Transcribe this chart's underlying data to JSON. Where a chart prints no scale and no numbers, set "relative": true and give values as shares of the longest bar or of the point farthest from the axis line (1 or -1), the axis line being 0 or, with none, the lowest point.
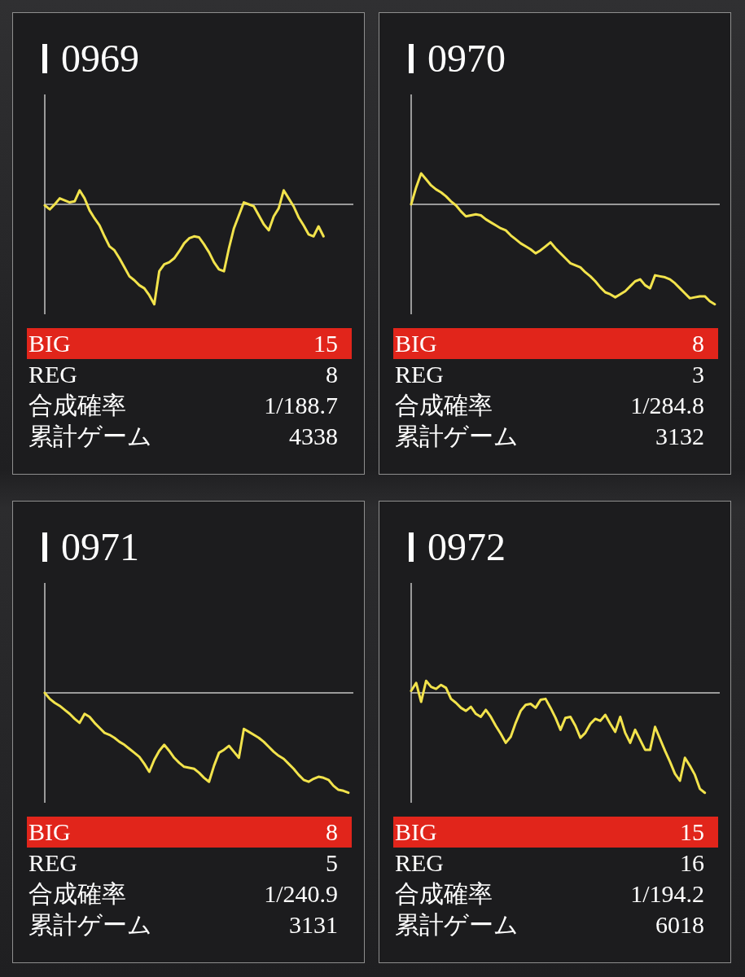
{
  "chart_data": [
    {
      "type": "line",
      "title": "0969",
      "relative": true,
      "categories": [
        null,
        null,
        null,
        null,
        null,
        null,
        null,
        null,
        null,
        null,
        null,
        null,
        null,
        null,
        null,
        null,
        null,
        null,
        null,
        null,
        null,
        null,
        null,
        null,
        null,
        null,
        null,
        null,
        null,
        null,
        null,
        null,
        null,
        null,
        null,
        null,
        null,
        null,
        null,
        null,
        null,
        null,
        null,
        null,
        null,
        null,
        null,
        null,
        null,
        null,
        null,
        null,
        null,
        null,
        null,
        null,
        null,
        null,
        null,
        null,
        null,
        null,
        null
      ],
      "series": [
        {
          "color": "#f2e34c",
          "values": [
            -0.01,
            -0.05,
            0.0,
            0.06,
            0.04,
            0.02,
            0.03,
            0.14,
            0.06,
            -0.06,
            -0.14,
            -0.21,
            -0.32,
            -0.42,
            -0.46,
            -0.54,
            -0.63,
            -0.72,
            -0.76,
            -0.81,
            -0.84,
            -0.91,
            -1,
            -0.67,
            -0.6,
            -0.58,
            -0.54,
            -0.47,
            -0.39,
            -0.34,
            -0.32,
            -0.33,
            -0.4,
            -0.48,
            -0.58,
            -0.65,
            -0.67,
            -0.44,
            -0.24,
            -0.11,
            0.02,
            0.0,
            -0.02,
            -0.11,
            -0.2,
            -0.26,
            -0.12,
            -0.04,
            0.14,
            0.06,
            -0.02,
            -0.13,
            -0.21,
            -0.3,
            -0.32,
            -0.22,
            -0.32,
            null,
            null,
            null,
            null,
            null,
            null
          ]
        }
      ],
      "annotations": [
        "BIG",
        "15",
        "REG",
        "8",
        "合成確率",
        "1/188.7",
        "累計ゲーム",
        "4338"
      ]
    },
    {
      "type": "line",
      "title": "0970",
      "relative": true,
      "categories": [
        null,
        null,
        null,
        null,
        null,
        null,
        null,
        null,
        null,
        null,
        null,
        null,
        null,
        null,
        null,
        null,
        null,
        null,
        null,
        null,
        null,
        null,
        null,
        null,
        null,
        null,
        null,
        null,
        null,
        null,
        null,
        null,
        null,
        null,
        null,
        null,
        null,
        null,
        null,
        null,
        null,
        null,
        null,
        null,
        null,
        null,
        null,
        null,
        null,
        null,
        null,
        null,
        null,
        null,
        null,
        null,
        null,
        null,
        null,
        null,
        null,
        null,
        null
      ],
      "series": [
        {
          "color": "#f2e34c",
          "values": [
            0.0,
            0.17,
            0.31,
            0.25,
            0.19,
            0.15,
            0.12,
            0.08,
            0.03,
            -0.01,
            -0.07,
            -0.12,
            -0.11,
            -0.1,
            -0.11,
            -0.15,
            -0.18,
            -0.21,
            -0.24,
            -0.26,
            -0.31,
            -0.35,
            -0.39,
            -0.42,
            -0.45,
            -0.49,
            -0.46,
            -0.42,
            -0.38,
            -0.44,
            -0.49,
            -0.54,
            -0.59,
            -0.61,
            -0.63,
            -0.68,
            -0.72,
            -0.77,
            -0.83,
            -0.88,
            -0.9,
            -0.93,
            -0.9,
            -0.87,
            -0.82,
            -0.77,
            -0.75,
            -0.81,
            -0.84,
            -0.71,
            -0.72,
            -0.73,
            -0.75,
            -0.79,
            -0.84,
            -0.89,
            -0.94,
            -0.93,
            -0.92,
            -0.92,
            -0.97,
            -1,
            null
          ]
        }
      ],
      "annotations": [
        "BIG",
        "8",
        "REG",
        "3",
        "合成確率",
        "1/284.8",
        "累計ゲーム",
        "3132"
      ]
    },
    {
      "type": "line",
      "title": "0971",
      "relative": true,
      "categories": [
        null,
        null,
        null,
        null,
        null,
        null,
        null,
        null,
        null,
        null,
        null,
        null,
        null,
        null,
        null,
        null,
        null,
        null,
        null,
        null,
        null,
        null,
        null,
        null,
        null,
        null,
        null,
        null,
        null,
        null,
        null,
        null,
        null,
        null,
        null,
        null,
        null,
        null,
        null,
        null,
        null,
        null,
        null,
        null,
        null,
        null,
        null,
        null,
        null,
        null,
        null,
        null,
        null,
        null,
        null,
        null,
        null,
        null,
        null,
        null,
        null,
        null,
        null
      ],
      "series": [
        {
          "color": "#f2e34c",
          "values": [
            0.0,
            -0.06,
            -0.1,
            -0.13,
            -0.17,
            -0.21,
            -0.26,
            -0.3,
            -0.21,
            -0.24,
            -0.3,
            -0.35,
            -0.4,
            -0.42,
            -0.45,
            -0.49,
            -0.52,
            -0.56,
            -0.6,
            -0.64,
            -0.71,
            -0.79,
            -0.67,
            -0.58,
            -0.52,
            -0.58,
            -0.65,
            -0.7,
            -0.74,
            -0.75,
            -0.76,
            -0.8,
            -0.85,
            -0.89,
            -0.73,
            -0.6,
            -0.57,
            -0.53,
            -0.59,
            -0.65,
            -0.36,
            -0.39,
            -0.42,
            -0.45,
            -0.49,
            -0.54,
            -0.59,
            -0.63,
            -0.66,
            -0.71,
            -0.76,
            -0.82,
            -0.87,
            -0.89,
            -0.86,
            -0.84,
            -0.85,
            -0.87,
            -0.93,
            -0.97,
            -0.98,
            -1,
            null
          ]
        }
      ],
      "annotations": [
        "BIG",
        "8",
        "REG",
        "5",
        "合成確率",
        "1/240.9",
        "累計ゲーム",
        "3131"
      ]
    },
    {
      "type": "line",
      "title": "0972",
      "relative": true,
      "categories": [
        null,
        null,
        null,
        null,
        null,
        null,
        null,
        null,
        null,
        null,
        null,
        null,
        null,
        null,
        null,
        null,
        null,
        null,
        null,
        null,
        null,
        null,
        null,
        null,
        null,
        null,
        null,
        null,
        null,
        null,
        null,
        null,
        null,
        null,
        null,
        null,
        null,
        null,
        null,
        null,
        null,
        null,
        null,
        null,
        null,
        null,
        null,
        null,
        null,
        null,
        null,
        null,
        null,
        null,
        null,
        null,
        null,
        null,
        null,
        null,
        null,
        null,
        null
      ],
      "series": [
        {
          "color": "#f2e34c",
          "values": [
            0.02,
            0.1,
            -0.09,
            0.12,
            0.06,
            0.04,
            0.08,
            0.05,
            -0.06,
            -0.1,
            -0.15,
            -0.18,
            -0.14,
            -0.21,
            -0.24,
            -0.17,
            -0.24,
            -0.33,
            -0.41,
            -0.5,
            -0.44,
            -0.3,
            -0.18,
            -0.12,
            -0.11,
            -0.15,
            -0.07,
            -0.06,
            -0.15,
            -0.25,
            -0.37,
            -0.25,
            -0.24,
            -0.33,
            -0.45,
            -0.4,
            -0.31,
            -0.26,
            -0.28,
            -0.22,
            -0.31,
            -0.39,
            -0.24,
            -0.4,
            -0.5,
            -0.37,
            -0.47,
            -0.57,
            -0.57,
            -0.34,
            -0.46,
            -0.58,
            -0.69,
            -0.81,
            -0.88,
            -0.65,
            -0.73,
            -0.82,
            -0.96,
            -1,
            null,
            null,
            null
          ]
        }
      ],
      "annotations": [
        "BIG",
        "15",
        "REG",
        "16",
        "合成確率",
        "1/194.2",
        "累計ゲーム",
        "6018"
      ]
    }
  ]
}
